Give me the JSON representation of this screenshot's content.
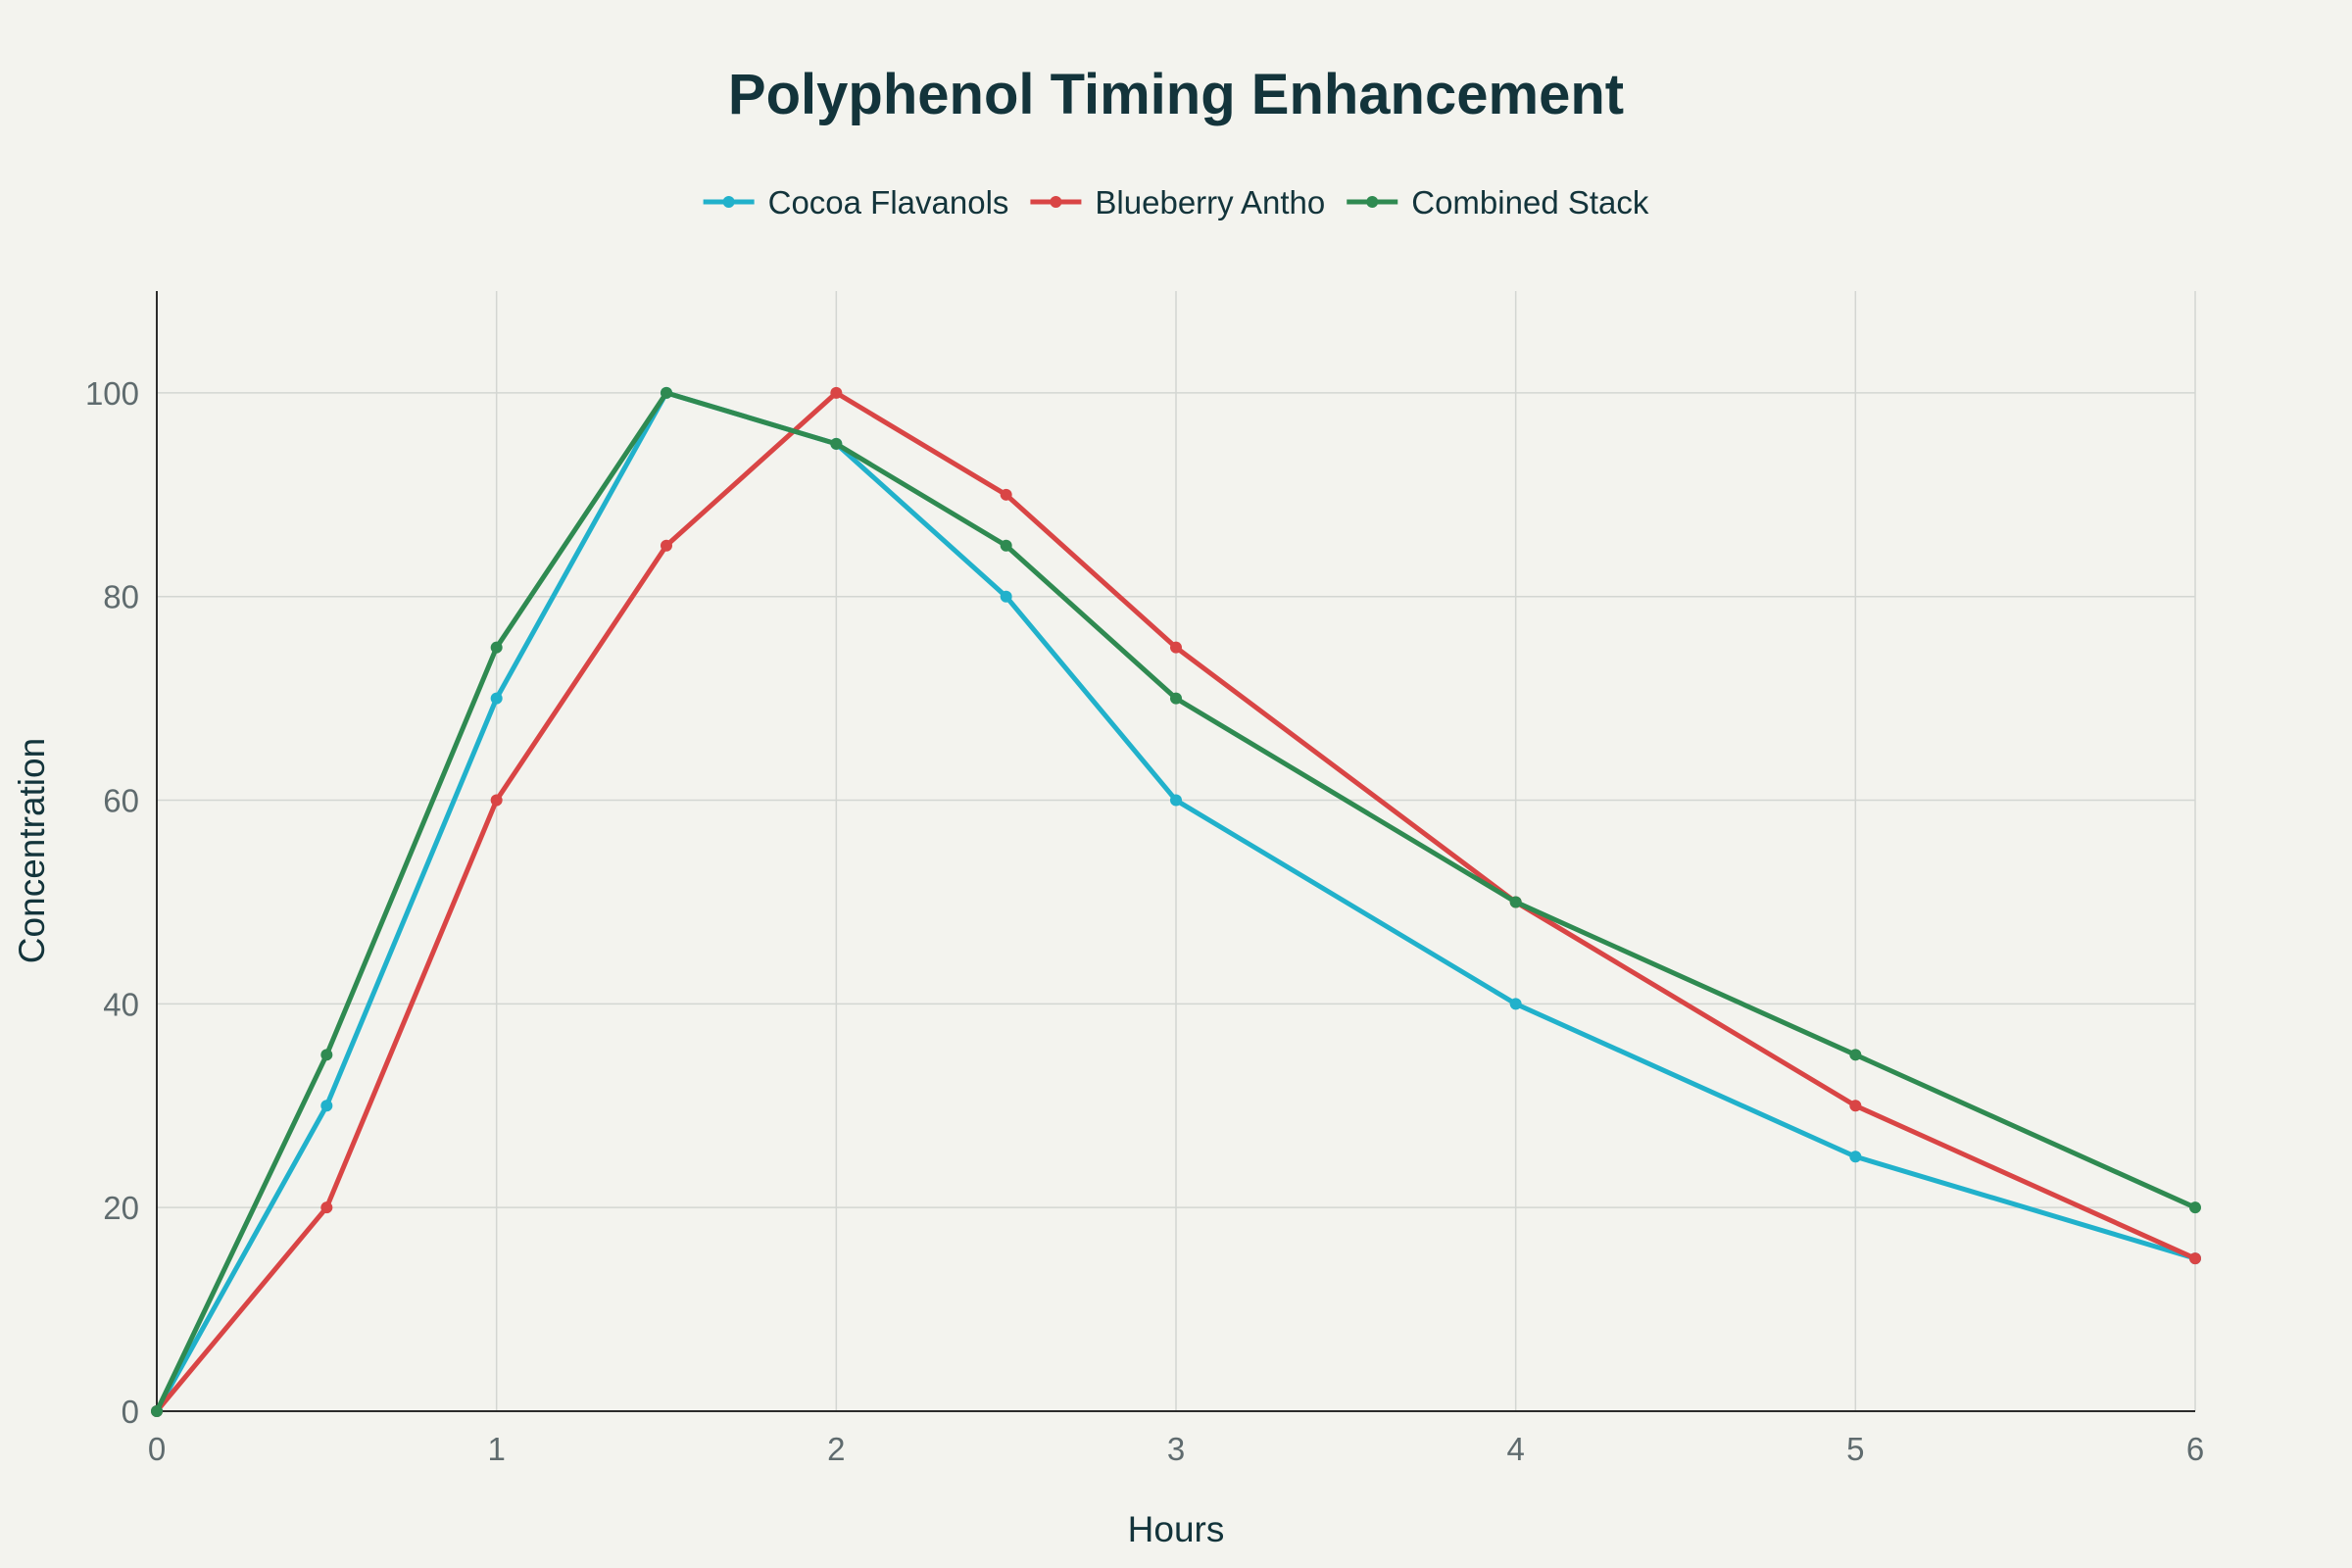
{
  "chart_data": {
    "type": "line",
    "title": "Polyphenol Timing Enhancement",
    "xlabel": "Hours",
    "ylabel": "Concentration",
    "x": [
      0,
      0.5,
      1,
      1.5,
      2,
      2.5,
      3,
      4,
      5,
      6
    ],
    "xlim": [
      0,
      6
    ],
    "ylim": [
      0,
      110
    ],
    "x_ticks": [
      0,
      1,
      2,
      3,
      4,
      5,
      6
    ],
    "y_ticks": [
      0,
      20,
      40,
      60,
      80,
      100
    ],
    "grid": true,
    "legend_position": "top-center",
    "series": [
      {
        "name": "Cocoa Flavanols",
        "color": "#21b1cb",
        "values": [
          0,
          30,
          70,
          100,
          95,
          80,
          60,
          40,
          25,
          15
        ]
      },
      {
        "name": "Blueberry Antho",
        "color": "#d94545",
        "values": [
          0,
          20,
          60,
          85,
          100,
          90,
          75,
          50,
          30,
          15
        ]
      },
      {
        "name": "Combined Stack",
        "color": "#2f8a51",
        "values": [
          0,
          35,
          75,
          100,
          95,
          85,
          70,
          50,
          35,
          20
        ]
      }
    ]
  }
}
